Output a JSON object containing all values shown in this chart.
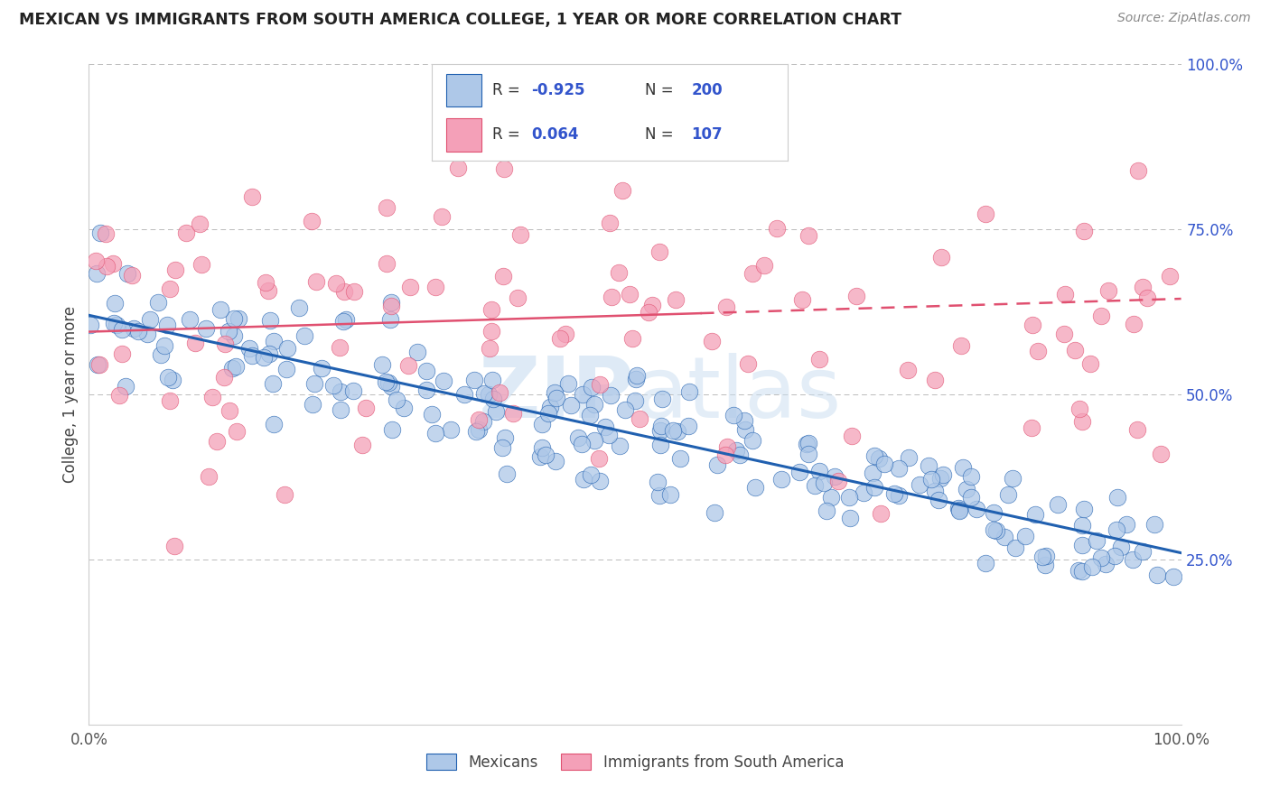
{
  "title": "MEXICAN VS IMMIGRANTS FROM SOUTH AMERICA COLLEGE, 1 YEAR OR MORE CORRELATION CHART",
  "source": "Source: ZipAtlas.com",
  "ylabel": "College, 1 year or more",
  "blue_scatter_color": "#aec8e8",
  "pink_scatter_color": "#f4a0b8",
  "blue_line_color": "#2060b0",
  "pink_line_color": "#e05070",
  "watermark_zip": "ZIP",
  "watermark_atlas": "atlas",
  "background_color": "#ffffff",
  "grid_color": "#bbbbbb",
  "legend_text_color": "#3355cc",
  "legend_label_color": "#333333",
  "mexicans_label": "Mexicans",
  "sa_label": "Immigrants from South America",
  "blue_r": -0.925,
  "blue_n": 200,
  "pink_r": 0.064,
  "pink_n": 107,
  "blue_slope": -0.36,
  "blue_intercept": 0.62,
  "pink_slope": 0.05,
  "pink_intercept": 0.595,
  "seed": 7
}
